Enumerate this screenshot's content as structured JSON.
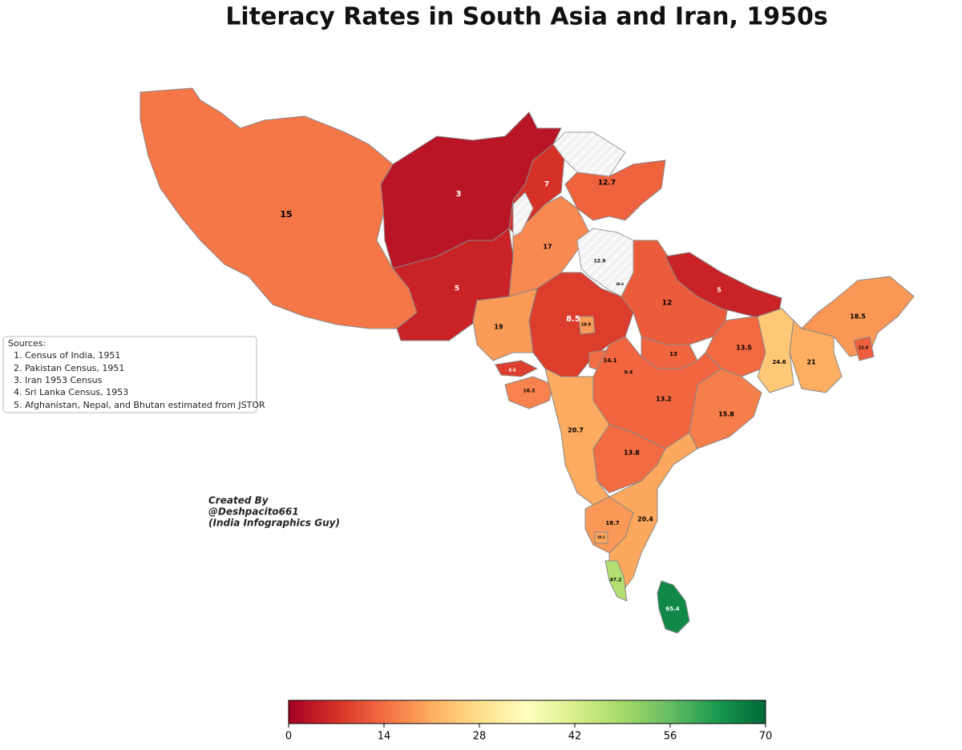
{
  "title": "Literacy Rates in South Asia and Iran, 1950s",
  "sources": {
    "heading": "Sources:",
    "items": [
      "1. Census of India, 1951",
      "2. Pakistan Census, 1951",
      "3. Iran 1953 Census",
      "4. Sri Lanka Census, 1953",
      "5. Afghanistan, Nepal, and Bhutan estimated from JSTOR"
    ]
  },
  "credit": [
    "Created By",
    "@Deshpacito661",
    "(India Infographics Guy)"
  ],
  "regions": [
    {
      "value": 15
    },
    {
      "value": 3
    },
    {
      "value": 5
    },
    {
      "value": 7
    },
    {
      "value": 12.7
    },
    {
      "value": 17
    },
    {
      "value": 19
    },
    {
      "value": 12.9
    },
    {
      "value": 38.4
    },
    {
      "value": 8.5
    },
    {
      "value": 18.9
    },
    {
      "value": 12
    },
    {
      "value": 5
    },
    {
      "value": 13.5
    },
    {
      "value": 13
    },
    {
      "value": 14.1
    },
    {
      "value": 9.4
    },
    {
      "value": 8.6
    },
    {
      "value": 16.3
    },
    {
      "value": 24.6
    },
    {
      "value": 21
    },
    {
      "value": 18.5
    },
    {
      "value": 12.4
    },
    {
      "value": 13.2
    },
    {
      "value": 15.8
    },
    {
      "value": 20.7
    },
    {
      "value": 13.8
    },
    {
      "value": 20.4
    },
    {
      "value": 18.7
    },
    {
      "value": 20.1
    },
    {
      "value": 47.2
    },
    {
      "value": 65.4
    }
  ],
  "colorbar": {
    "lim": [
      0,
      70
    ],
    "ticks": [
      0,
      14,
      28,
      42,
      56,
      70
    ],
    "colors": [
      "#a50026",
      "#d73027",
      "#f46d43",
      "#fdae61",
      "#fee08b",
      "#ffffbf",
      "#d9ef8b",
      "#a6d96a",
      "#66bd63",
      "#1a9850",
      "#006837"
    ]
  }
}
